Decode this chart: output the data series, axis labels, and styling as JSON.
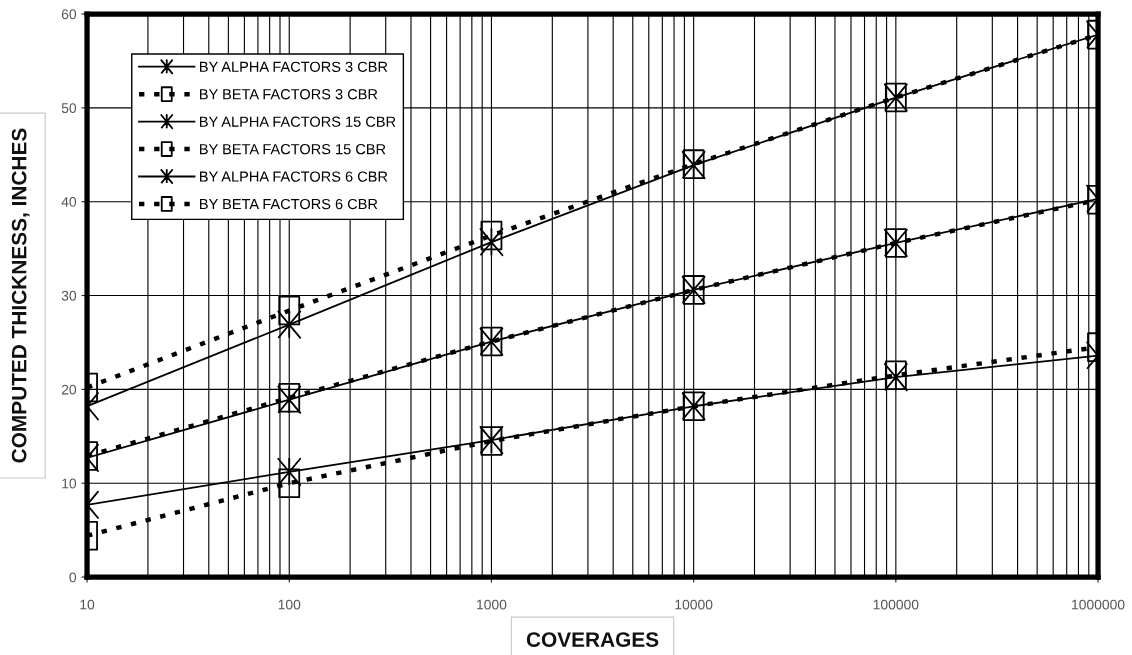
{
  "chart_data": {
    "type": "line",
    "xlabel": "COVERAGES",
    "ylabel": "COMPUTED THICKNESS, INCHES",
    "x": [
      10,
      100,
      1000,
      10000,
      100000,
      1000000
    ],
    "log": "x",
    "xlim": [
      10,
      1000000
    ],
    "xticks": [
      10,
      100,
      1000,
      10000,
      100000,
      1000000
    ],
    "ylim": [
      0,
      60
    ],
    "yticks": [
      0,
      10,
      20,
      30,
      40,
      50,
      60
    ],
    "grid": true,
    "legend": "top left",
    "series": [
      {
        "name": "BY ALPHA FACTORS 3 CBR",
        "color": "#000000",
        "marker": "cross",
        "line_style": "solid",
        "values": [
          18.2,
          26.9,
          35.7,
          43.9,
          51.1,
          57.8
        ]
      },
      {
        "name": "BY BETA FACTORS 3 CBR",
        "color": "#000000",
        "marker": "square",
        "line_style": "dotted",
        "values": [
          20.2,
          28.4,
          36.4,
          44.0,
          51.1,
          57.8
        ]
      },
      {
        "name": "BY ALPHA FACTORS 15 CBR",
        "color": "#000000",
        "marker": "cross",
        "line_style": "solid",
        "values": [
          7.7,
          11.2,
          14.6,
          18.2,
          21.3,
          23.6
        ]
      },
      {
        "name": "BY BETA FACTORS 15 CBR",
        "color": "#000000",
        "marker": "square",
        "line_style": "dotted",
        "values": [
          4.4,
          10.0,
          14.5,
          18.2,
          21.5,
          24.5
        ]
      },
      {
        "name": "BY ALPHA FACTORS 6 CBR",
        "color": "#000000",
        "marker": "cross",
        "line_style": "solid",
        "values": [
          12.7,
          18.9,
          25.1,
          30.6,
          35.6,
          40.3
        ]
      },
      {
        "name": "BY BETA FACTORS 6 CBR",
        "color": "#000000",
        "marker": "square",
        "line_style": "dotted",
        "values": [
          12.9,
          19.1,
          25.1,
          30.6,
          35.6,
          40.2
        ]
      }
    ]
  }
}
